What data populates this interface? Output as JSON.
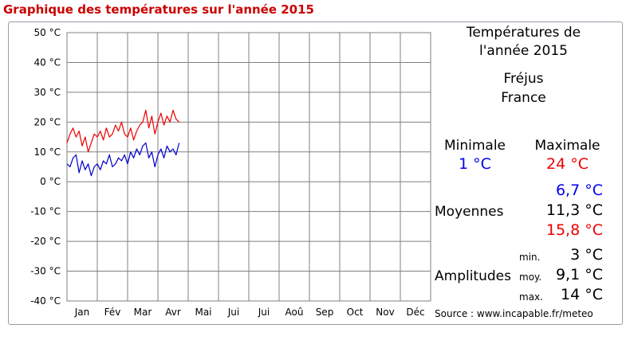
{
  "page_title": "Graphique des températures sur l'année 2015",
  "info": {
    "heading_line1": "Températures de",
    "heading_line2": "l'année 2015",
    "city": "Fréjus",
    "country": "France",
    "min_label": "Minimale",
    "max_label": "Maximale",
    "min_value": "1 °C",
    "max_value": "24 °C",
    "averages_label": "Moyennes",
    "avg_min": "6,7 °C",
    "avg_mean": "11,3 °C",
    "avg_max": "15,8 °C",
    "amplitudes_label": "Amplitudes",
    "amp_min_label": "min.",
    "amp_min": "3 °C",
    "amp_mean_label": "moy.",
    "amp_mean": "9,1 °C",
    "amp_max_label": "max.",
    "amp_max": "14 °C",
    "source": "Source : www.incapable.fr/meteo"
  },
  "colors": {
    "max_series": "#ee0000",
    "min_series": "#0000cc",
    "grid": "#808080",
    "title": "#cc0000"
  },
  "chart_data": {
    "type": "line",
    "title": "",
    "xlabel": "",
    "ylabel": "",
    "ylim": [
      -40,
      50
    ],
    "xlim": [
      0,
      12
    ],
    "grid": true,
    "y_ticks": [
      50,
      40,
      30,
      20,
      10,
      0,
      -10,
      -20,
      -30,
      -40
    ],
    "y_tick_labels": [
      "50 °C",
      "40 °C",
      "30 °C",
      "20 °C",
      "10 °C",
      "0 °C",
      "-10 °C",
      "-20 °C",
      "-30 °C",
      "-40 °C"
    ],
    "x_tick_labels": [
      "Jan",
      "Fév",
      "Mar",
      "Avr",
      "Mai",
      "Jui",
      "Jui",
      "Aoû",
      "Sep",
      "Oct",
      "Nov",
      "Déc"
    ],
    "series": [
      {
        "values_months": [
          0.0,
          0.1,
          0.2,
          0.3,
          0.4,
          0.5,
          0.6,
          0.7,
          0.8,
          0.9,
          1.0,
          1.1,
          1.2,
          1.3,
          1.4,
          1.5,
          1.6,
          1.7,
          1.8,
          1.9,
          2.0,
          2.1,
          2.2,
          2.3,
          2.4,
          2.5,
          2.6,
          2.7,
          2.8,
          2.9,
          3.0,
          3.1,
          3.2,
          3.3,
          3.4,
          3.5,
          3.6,
          3.7
        ],
        "values": [
          13,
          16,
          18,
          15,
          17,
          12,
          15,
          10,
          13,
          16,
          15,
          17,
          14,
          18,
          15,
          16,
          19,
          17,
          20,
          16,
          15,
          18,
          14,
          17,
          19,
          20,
          24,
          18,
          22,
          16,
          20,
          23,
          19,
          22,
          20,
          24,
          21,
          20
        ]
      },
      {
        "values_months": [
          0.0,
          0.1,
          0.2,
          0.3,
          0.4,
          0.5,
          0.6,
          0.7,
          0.8,
          0.9,
          1.0,
          1.1,
          1.2,
          1.3,
          1.4,
          1.5,
          1.6,
          1.7,
          1.8,
          1.9,
          2.0,
          2.1,
          2.2,
          2.3,
          2.4,
          2.5,
          2.6,
          2.7,
          2.8,
          2.9,
          3.0,
          3.1,
          3.2,
          3.3,
          3.4,
          3.5,
          3.6,
          3.7
        ],
        "values": [
          6,
          5,
          8,
          9,
          3,
          7,
          4,
          6,
          2,
          5,
          6,
          4,
          7,
          6,
          9,
          5,
          6,
          8,
          7,
          9,
          6,
          10,
          8,
          11,
          9,
          12,
          13,
          8,
          10,
          5,
          9,
          11,
          8,
          12,
          10,
          11,
          9,
          13
        ]
      }
    ]
  }
}
